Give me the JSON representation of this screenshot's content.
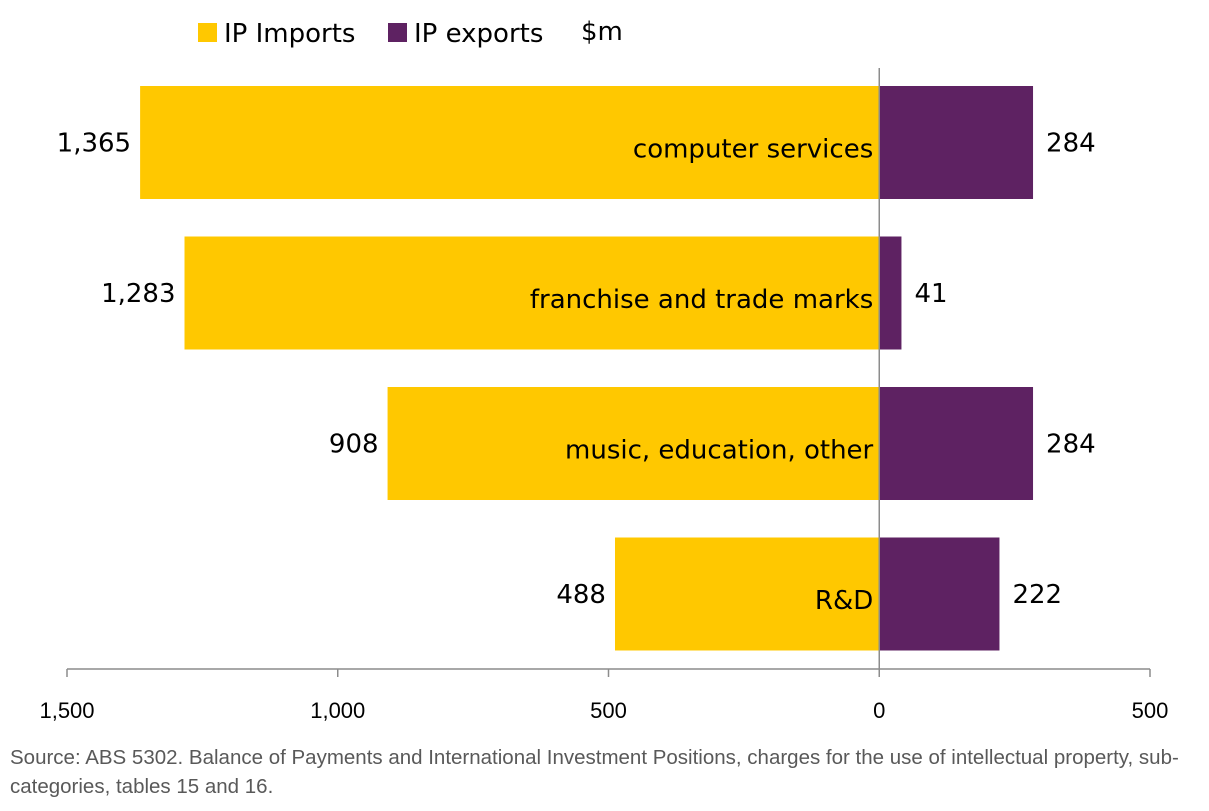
{
  "chart_data": {
    "type": "bar",
    "orientation": "horizontal-diverging",
    "unit_label": "$m",
    "categories": [
      "computer services",
      "franchise and trade marks",
      "music, education, other",
      "R&D"
    ],
    "series": [
      {
        "name": "IP Imports",
        "color": "#FFC800",
        "values": [
          1365,
          1283,
          908,
          488
        ],
        "value_labels": [
          "1,365",
          "1,283",
          "908",
          "488"
        ]
      },
      {
        "name": "IP exports",
        "color": "#5E2262",
        "values": [
          284,
          41,
          284,
          222
        ],
        "value_labels": [
          "284",
          "41",
          "284",
          "222"
        ]
      }
    ],
    "x_ticks": [
      "1,500",
      "1,000",
      "500",
      "0",
      "500"
    ],
    "xlim": [
      -1500,
      500
    ],
    "legend": "top-left",
    "grid": false
  },
  "source_note": "Source: ABS 5302. Balance of Payments and International Investment Positions, charges for the use of intellectual property, sub-categories, tables 15 and 16."
}
